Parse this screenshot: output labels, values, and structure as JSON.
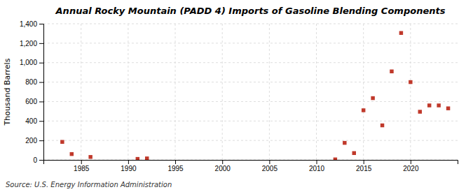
{
  "chart_data": {
    "type": "scatter",
    "title": "Annual Rocky Mountain (PADD 4) Imports of Gasoline Blending Components",
    "ylabel": "Thousand Barrels",
    "source": "Source: U.S. Energy Information Administration",
    "x": [
      1983,
      1984,
      1986,
      1991,
      1992,
      2012,
      2013,
      2014,
      2015,
      2016,
      2017,
      2018,
      2019,
      2020,
      2021,
      2022,
      2023,
      2024
    ],
    "values": [
      185,
      60,
      30,
      10,
      15,
      5,
      175,
      70,
      510,
      635,
      355,
      910,
      1305,
      800,
      495,
      560,
      560,
      530
    ],
    "color": "#c0392b",
    "marker": "square",
    "xlim": [
      1981,
      2025
    ],
    "ylim": [
      0,
      1400
    ],
    "xticks": [
      1985,
      1990,
      1995,
      2000,
      2005,
      2010,
      2015,
      2020
    ],
    "yticks": [
      0,
      200,
      400,
      600,
      800,
      {
        "value": 1000,
        "label": "1,000"
      },
      {
        "value": 1200,
        "label": "1,200"
      },
      {
        "value": 1400,
        "label": "1,400"
      }
    ],
    "grid": true
  }
}
